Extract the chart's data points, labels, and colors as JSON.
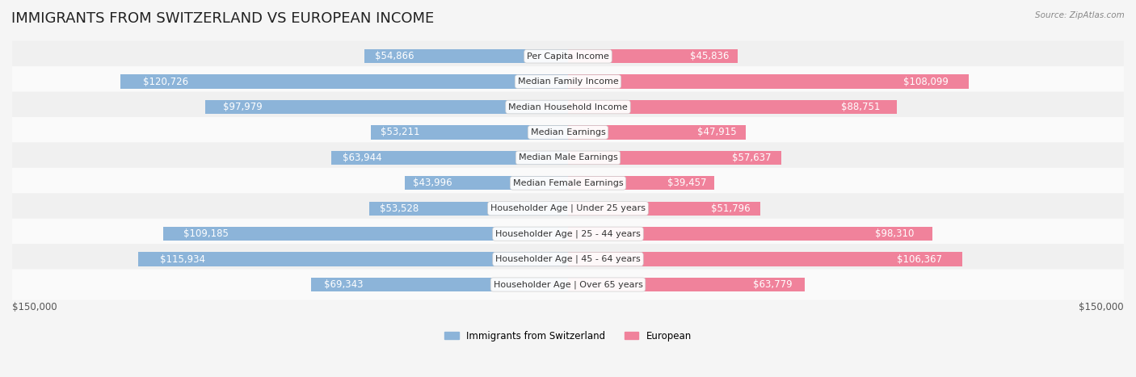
{
  "title": "IMMIGRANTS FROM SWITZERLAND VS EUROPEAN INCOME",
  "source": "Source: ZipAtlas.com",
  "categories": [
    "Per Capita Income",
    "Median Family Income",
    "Median Household Income",
    "Median Earnings",
    "Median Male Earnings",
    "Median Female Earnings",
    "Householder Age | Under 25 years",
    "Householder Age | 25 - 44 years",
    "Householder Age | 45 - 64 years",
    "Householder Age | Over 65 years"
  ],
  "switzerland_values": [
    54866,
    120726,
    97979,
    53211,
    63944,
    43996,
    53528,
    109185,
    115934,
    69343
  ],
  "european_values": [
    45836,
    108099,
    88751,
    47915,
    57637,
    39457,
    51796,
    98310,
    106367,
    63779
  ],
  "switzerland_labels": [
    "$54,866",
    "$120,726",
    "$97,979",
    "$53,211",
    "$63,944",
    "$43,996",
    "$53,528",
    "$109,185",
    "$115,934",
    "$69,343"
  ],
  "european_labels": [
    "$45,836",
    "$108,099",
    "$88,751",
    "$47,915",
    "$57,637",
    "$39,457",
    "$51,796",
    "$98,310",
    "$106,367",
    "$63,779"
  ],
  "switzerland_color": "#8cb4d9",
  "european_color": "#f0829b",
  "switzerland_label_color_inner": "#ffffff",
  "switzerland_label_color_outer": "#666666",
  "european_label_color_inner": "#ffffff",
  "european_label_color_outer": "#666666",
  "bar_height": 0.55,
  "max_value": 150000,
  "x_label_left": "$150,000",
  "x_label_right": "$150,000",
  "legend_switzerland": "Immigrants from Switzerland",
  "legend_european": "European",
  "background_color": "#f5f5f5",
  "row_bg_light": "#ffffff",
  "row_bg_dark": "#eeeeee",
  "title_fontsize": 13,
  "label_fontsize": 8.5,
  "category_fontsize": 8.0
}
